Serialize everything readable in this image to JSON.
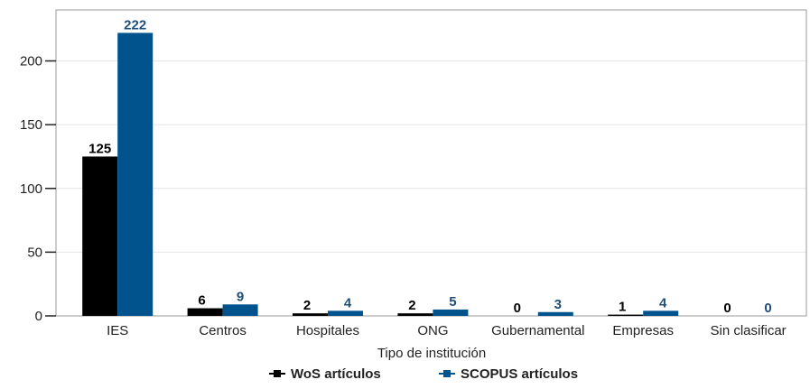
{
  "chart_data": {
    "type": "bar",
    "title": "",
    "xlabel": "Tipo de institución",
    "ylabel": "",
    "ylim": [
      0,
      240
    ],
    "yticks": [
      0,
      50,
      100,
      150,
      200
    ],
    "grid": true,
    "legend_position": "bottom",
    "categories": [
      "IES",
      "Centros",
      "Hospitales",
      "ONG",
      "Gubernamental",
      "Empresas",
      "Sin clasificar"
    ],
    "series": [
      {
        "name": "WoS artículos",
        "color": "#000000",
        "label_color": "#000000",
        "values": [
          125,
          6,
          2,
          2,
          0,
          1,
          0
        ]
      },
      {
        "name": "SCOPUS artículos",
        "color": "#00538c",
        "label_color": "#1f4e79",
        "values": [
          222,
          9,
          4,
          5,
          3,
          4,
          0
        ]
      }
    ]
  }
}
